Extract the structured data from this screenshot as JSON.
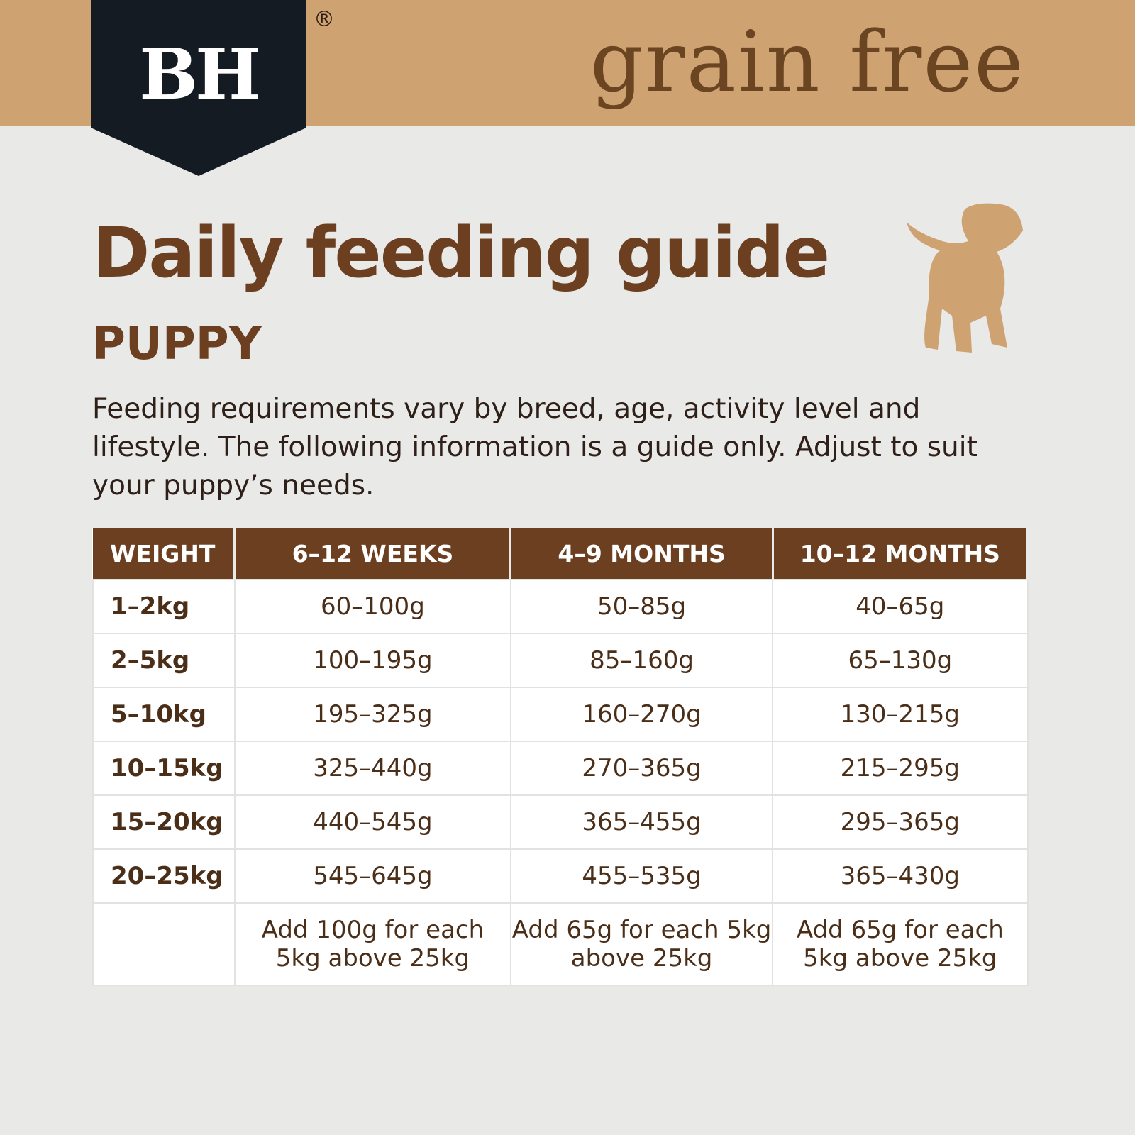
{
  "brand": {
    "logo_text": "BH",
    "registered": "®",
    "tagline": "grain free"
  },
  "colors": {
    "band": "#cfa272",
    "logo_bg": "#141b22",
    "heading": "#6b3f1f",
    "table_header": "#6b3f1f"
  },
  "title": "Daily feeding guide",
  "subtitle": "PUPPY",
  "intro": "Feeding requirements vary by breed, age, activity level and lifestyle. The following information is a guide only.  Adjust to suit your puppy’s needs.",
  "illustration": "puppy-silhouette",
  "table": {
    "headers": [
      "WEIGHT",
      "6–12 WEEKS",
      "4–9 MONTHS",
      "10–12 MONTHS"
    ],
    "rows": [
      [
        "1–2kg",
        "60–100g",
        "50–85g",
        "40–65g"
      ],
      [
        "2–5kg",
        "100–195g",
        "85–160g",
        "65–130g"
      ],
      [
        "5–10kg",
        "195–325g",
        "160–270g",
        "130–215g"
      ],
      [
        "10–15kg",
        "325–440g",
        "270–365g",
        "215–295g"
      ],
      [
        "15–20kg",
        "440–545g",
        "365–455g",
        "295–365g"
      ],
      [
        "20–25kg",
        "545–645g",
        "455–535g",
        "365–430g"
      ]
    ],
    "notes": [
      "",
      "Add 100g for each 5kg above 25kg",
      "Add 65g for each 5kg above 25kg",
      "Add 65g for each 5kg above 25kg"
    ]
  }
}
